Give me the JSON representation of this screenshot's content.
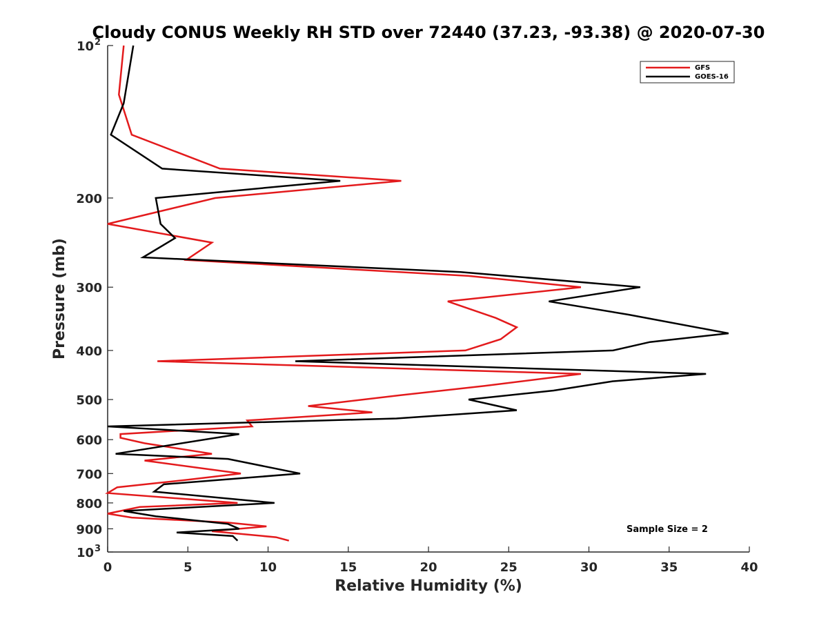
{
  "chart_data": {
    "type": "line",
    "title": "Cloudy CONUS Weekly RH STD over 72440 (37.23, -93.38) @ 2020-07-30",
    "xlabel": "Relative Humidity (%)",
    "ylabel": "Pressure (mb)",
    "xlim": [
      0,
      40
    ],
    "ylim": [
      100,
      1000
    ],
    "yscale": "log",
    "y_reversed": true,
    "x_ticks": [
      "0",
      "5",
      "10",
      "15",
      "20",
      "25",
      "30",
      "35",
      "40"
    ],
    "y_ticks": [
      {
        "value": 100,
        "base": "10",
        "exp": "2"
      },
      {
        "value": 200,
        "label": "200"
      },
      {
        "value": 300,
        "label": "300"
      },
      {
        "value": 400,
        "label": "400"
      },
      {
        "value": 500,
        "label": "500"
      },
      {
        "value": 600,
        "label": "600"
      },
      {
        "value": 700,
        "label": "700"
      },
      {
        "value": 800,
        "label": "800"
      },
      {
        "value": 900,
        "label": "900"
      },
      {
        "value": 1000,
        "base": "10",
        "exp": "3"
      }
    ],
    "legend_position": "top-right",
    "grid": false,
    "annotation": "Sample Size = 2",
    "series": [
      {
        "name": "GFS",
        "color": "#e31a1c",
        "points": [
          [
            1.0,
            100
          ],
          [
            0.7,
            125
          ],
          [
            1.5,
            150
          ],
          [
            7.0,
            175
          ],
          [
            18.3,
            185
          ],
          [
            6.7,
            200
          ],
          [
            0.0,
            225
          ],
          [
            6.5,
            245
          ],
          [
            4.9,
            265
          ],
          [
            22.5,
            285
          ],
          [
            29.5,
            300
          ],
          [
            21.2,
            320
          ],
          [
            24.2,
            345
          ],
          [
            25.5,
            360
          ],
          [
            24.5,
            380
          ],
          [
            22.3,
            400
          ],
          [
            3.1,
            420
          ],
          [
            29.5,
            445
          ],
          [
            23.5,
            470
          ],
          [
            18.3,
            490
          ],
          [
            12.5,
            515
          ],
          [
            16.5,
            530
          ],
          [
            8.7,
            550
          ],
          [
            9.0,
            565
          ],
          [
            0.8,
            585
          ],
          [
            0.8,
            595
          ],
          [
            2.3,
            610
          ],
          [
            6.5,
            640
          ],
          [
            2.3,
            660
          ],
          [
            8.3,
            700
          ],
          [
            5.0,
            720
          ],
          [
            0.6,
            745
          ],
          [
            0.0,
            765
          ],
          [
            8.1,
            800
          ],
          [
            2.0,
            815
          ],
          [
            0.0,
            840
          ],
          [
            1.5,
            855
          ],
          [
            7.5,
            875
          ],
          [
            9.9,
            890
          ],
          [
            6.5,
            910
          ],
          [
            10.5,
            935
          ],
          [
            11.3,
            950
          ]
        ]
      },
      {
        "name": "GOES-16",
        "color": "#000000",
        "points": [
          [
            1.6,
            100
          ],
          [
            1.0,
            130
          ],
          [
            0.2,
            150
          ],
          [
            3.4,
            175
          ],
          [
            14.5,
            185
          ],
          [
            3.0,
            200
          ],
          [
            3.3,
            225
          ],
          [
            4.2,
            240
          ],
          [
            2.2,
            262
          ],
          [
            22.0,
            280
          ],
          [
            33.2,
            300
          ],
          [
            27.5,
            320
          ],
          [
            32.5,
            340
          ],
          [
            38.7,
            370
          ],
          [
            33.8,
            385
          ],
          [
            31.5,
            400
          ],
          [
            11.7,
            420
          ],
          [
            37.3,
            445
          ],
          [
            31.5,
            460
          ],
          [
            27.8,
            480
          ],
          [
            22.5,
            500
          ],
          [
            25.5,
            525
          ],
          [
            18.0,
            545
          ],
          [
            0.0,
            565
          ],
          [
            8.2,
            585
          ],
          [
            0.5,
            640
          ],
          [
            7.5,
            655
          ],
          [
            12.0,
            700
          ],
          [
            3.5,
            735
          ],
          [
            2.9,
            760
          ],
          [
            10.4,
            800
          ],
          [
            1.0,
            830
          ],
          [
            3.0,
            850
          ],
          [
            7.5,
            880
          ],
          [
            8.2,
            900
          ],
          [
            4.3,
            915
          ],
          [
            7.8,
            930
          ],
          [
            8.1,
            950
          ]
        ]
      }
    ]
  }
}
